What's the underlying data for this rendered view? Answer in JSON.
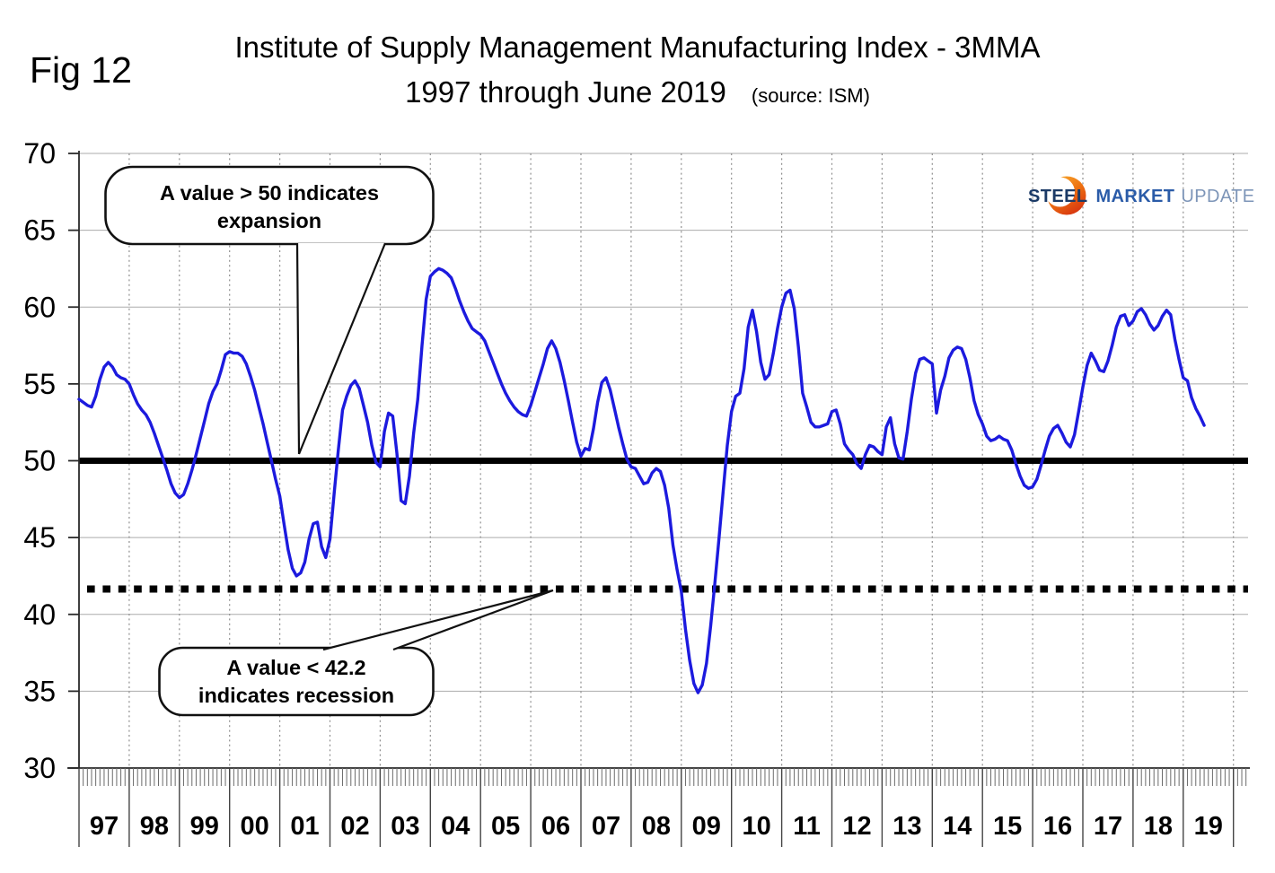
{
  "figure": {
    "fig_label": "Fig 12",
    "title_line1": "Institute of Supply Management Manufacturing Index - 3MMA",
    "title_line2": "1997 through June 2019",
    "source_note": "(source: ISM)"
  },
  "logo": {
    "word1": "STEEL",
    "word2": "MARKET",
    "word3": "UPDATE",
    "word1_color": "#1b3a66",
    "word2_color": "#2a5ba8",
    "word3_color": "#7d95b8",
    "crescent_color_top": "#f9b233",
    "crescent_color_bottom": "#d93a10"
  },
  "annotations": {
    "expansion": {
      "line1": "A value > 50 indicates",
      "line2": "expansion"
    },
    "recession": {
      "line1": "A value < 42.2",
      "line2": "indicates recession"
    }
  },
  "chart_data": {
    "type": "line",
    "title": "Institute of Supply Management Manufacturing Index - 3MMA, 1997 through June 2019",
    "source": "ISM",
    "xlabel": "",
    "ylabel": "",
    "ylim": [
      30,
      70
    ],
    "y_ticks": [
      30,
      35,
      40,
      45,
      50,
      55,
      60,
      65,
      70
    ],
    "x_tick_labels": [
      "97",
      "98",
      "99",
      "00",
      "01",
      "02",
      "03",
      "04",
      "05",
      "06",
      "07",
      "08",
      "09",
      "10",
      "11",
      "12",
      "13",
      "14",
      "15",
      "16",
      "17",
      "18",
      "19"
    ],
    "x_range": "January 1997 through June 2019, monthly",
    "grid": {
      "horizontal": "solid light gray at each 5 units",
      "vertical": "dotted light gray at each year boundary"
    },
    "legend_position": "none",
    "reference_lines": [
      {
        "name": "expansion-threshold",
        "value": 50,
        "style": "solid",
        "color": "#000000",
        "note": "A value > 50 indicates expansion"
      },
      {
        "name": "recession-threshold",
        "value": 42.2,
        "drawn_at": 41.65,
        "style": "dotted",
        "color": "#000000",
        "note": "A value < 42.2 indicates recession"
      }
    ],
    "series": [
      {
        "name": "ISM Manufacturing Index 3MMA",
        "color": "#1c1ade",
        "monthly_values_by_year": {
          "1997": [
            54.0,
            53.8,
            53.6,
            53.5,
            54.2,
            55.3,
            56.1,
            56.4,
            56.1,
            55.6,
            55.4,
            55.3
          ],
          "1998": [
            55.0,
            54.3,
            53.7,
            53.3,
            53.0,
            52.5,
            51.8,
            51.0,
            50.2,
            49.4,
            48.5,
            47.9
          ],
          "1999": [
            47.6,
            47.8,
            48.5,
            49.4,
            50.4,
            51.5,
            52.6,
            53.7,
            54.5,
            55.0,
            55.9,
            56.9
          ],
          "2000": [
            57.1,
            57.0,
            57.0,
            56.8,
            56.3,
            55.5,
            54.6,
            53.5,
            52.4,
            51.2,
            50.0,
            48.8
          ],
          "2001": [
            47.7,
            45.9,
            44.2,
            43.0,
            42.5,
            42.7,
            43.4,
            44.9,
            45.9,
            46.0,
            44.4,
            43.7
          ],
          "2002": [
            44.9,
            47.9,
            50.7,
            53.3,
            54.2,
            54.9,
            55.2,
            54.7,
            53.6,
            52.5,
            51.0,
            49.9
          ],
          "2003": [
            49.6,
            51.9,
            53.1,
            52.9,
            50.5,
            47.4,
            47.2,
            49.0,
            51.8,
            54.0,
            57.5,
            60.5
          ],
          "2004": [
            62.0,
            62.3,
            62.5,
            62.4,
            62.2,
            61.9,
            61.2,
            60.4,
            59.7,
            59.1,
            58.6,
            58.4
          ],
          "2005": [
            58.2,
            57.8,
            57.1,
            56.4,
            55.7,
            55.0,
            54.4,
            53.9,
            53.5,
            53.2,
            53.0,
            52.9
          ],
          "2006": [
            53.6,
            54.5,
            55.4,
            56.3,
            57.3,
            57.8,
            57.3,
            56.4,
            55.2,
            53.9,
            52.5,
            51.2
          ],
          "2007": [
            50.3,
            50.8,
            50.7,
            52.1,
            53.8,
            55.1,
            55.4,
            54.6,
            53.4,
            52.2,
            51.1,
            50.1
          ],
          "2008": [
            49.6,
            49.5,
            49.0,
            48.5,
            48.6,
            49.2,
            49.5,
            49.3,
            48.4,
            46.9,
            44.5,
            42.9
          ],
          "2009": [
            41.5,
            39.0,
            37.0,
            35.5,
            34.9,
            35.4,
            36.8,
            39.2,
            42.0,
            44.9,
            48.0,
            51.0
          ],
          "2010": [
            53.2,
            54.2,
            54.4,
            56.0,
            58.7,
            59.8,
            58.4,
            56.4,
            55.3,
            55.6,
            57.0,
            58.6
          ],
          "2011": [
            60.0,
            60.9,
            61.1,
            59.9,
            57.4,
            54.4,
            53.5,
            52.5,
            52.2,
            52.2,
            52.3,
            52.4
          ],
          "2012": [
            53.2,
            53.3,
            52.4,
            51.1,
            50.7,
            50.4,
            49.8,
            49.5,
            50.4,
            51.0,
            50.9,
            50.6
          ],
          "2013": [
            50.4,
            52.2,
            52.8,
            51.1,
            50.2,
            50.1,
            51.9,
            54.0,
            55.7,
            56.6,
            56.7,
            56.5
          ],
          "2014": [
            56.3,
            53.1,
            54.6,
            55.5,
            56.7,
            57.2,
            57.4,
            57.3,
            56.6,
            55.4,
            53.9,
            53.0
          ],
          "2015": [
            52.4,
            51.6,
            51.3,
            51.4,
            51.6,
            51.4,
            51.3,
            50.7,
            49.8,
            49.0,
            48.4,
            48.2
          ],
          "2016": [
            48.3,
            48.8,
            49.7,
            50.7,
            51.6,
            52.1,
            52.3,
            51.8,
            51.2,
            50.9,
            51.7,
            53.2
          ],
          "2017": [
            54.8,
            56.2,
            57.0,
            56.5,
            55.9,
            55.8,
            56.5,
            57.5,
            58.7,
            59.4,
            59.5,
            58.8
          ],
          "2018": [
            59.1,
            59.7,
            59.9,
            59.5,
            58.9,
            58.5,
            58.8,
            59.4,
            59.8,
            59.5,
            57.9,
            56.6
          ],
          "2019": [
            55.4,
            55.2,
            54.1,
            53.4,
            52.9,
            52.3
          ]
        }
      }
    ]
  }
}
